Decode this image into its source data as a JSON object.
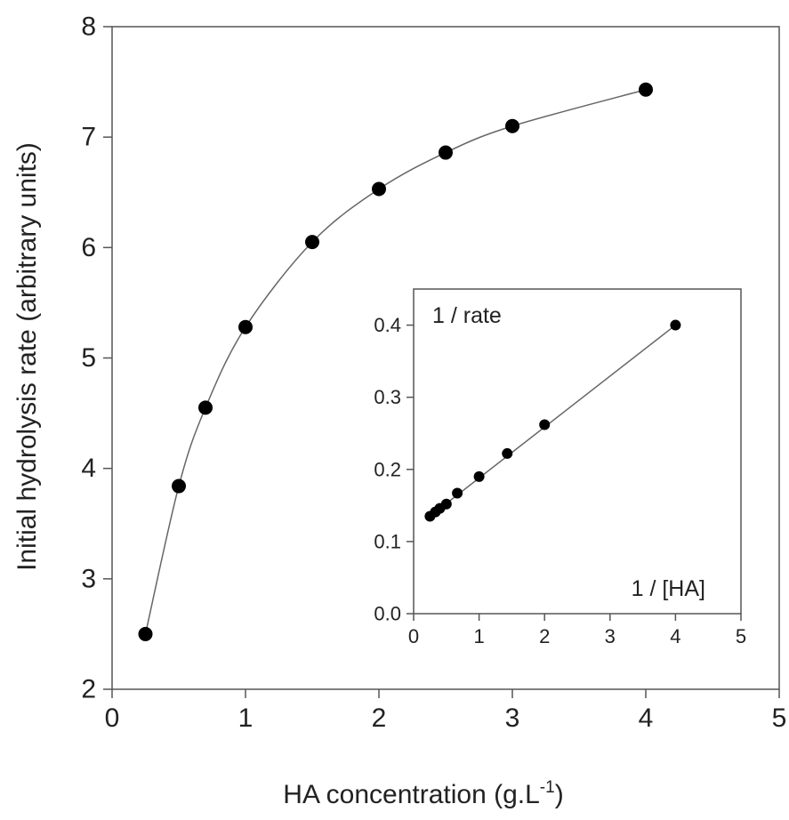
{
  "chart_data": [
    {
      "type": "scatter",
      "title": "",
      "xlabel": "HA concentration (g.L",
      "xlabel_superscript": "-1",
      "xlabel_suffix": ")",
      "ylabel": "Initial hydrolysis rate (arbitrary units)",
      "xlim": [
        0,
        5
      ],
      "ylim": [
        2,
        8
      ],
      "xticks": [
        0,
        1,
        2,
        3,
        4,
        5
      ],
      "yticks": [
        2,
        3,
        4,
        5,
        6,
        7,
        8
      ],
      "grid": false,
      "fit_line": "smooth curve through points",
      "series": [
        {
          "x": [
            0.25,
            0.5,
            0.7,
            1.0,
            1.5,
            2.0,
            2.5,
            3.0,
            4.0
          ],
          "y": [
            2.5,
            3.84,
            4.55,
            5.28,
            6.05,
            6.53,
            6.86,
            7.1,
            7.43
          ]
        }
      ]
    },
    {
      "type": "scatter",
      "title": "",
      "annotation_y": "1 / rate",
      "annotation_x": "1 / [HA]",
      "xlim": [
        0,
        5
      ],
      "ylim": [
        0.0,
        0.45
      ],
      "xticks": [
        0,
        1,
        2,
        3,
        4,
        5
      ],
      "yticks": [
        0.0,
        0.1,
        0.2,
        0.3,
        0.4
      ],
      "ytick_labels": [
        "0.0",
        "0.1",
        "0.2",
        "0.3",
        "0.4"
      ],
      "grid": false,
      "fit_line": "linear",
      "series": [
        {
          "x": [
            0.25,
            0.333,
            0.4,
            0.5,
            0.667,
            1.0,
            1.43,
            2.0,
            4.0
          ],
          "y": [
            0.135,
            0.141,
            0.146,
            0.152,
            0.167,
            0.19,
            0.222,
            0.262,
            0.4
          ]
        }
      ]
    }
  ]
}
